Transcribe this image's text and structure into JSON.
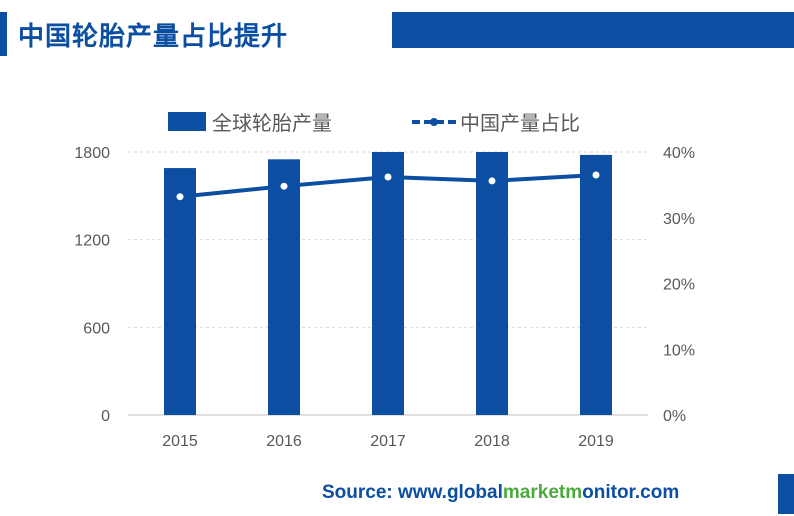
{
  "page": {
    "title": "中国轮胎产量占比提升",
    "source": {
      "prefix": "Source: www.",
      "parts": [
        "global",
        "market",
        "monitor",
        ".com"
      ]
    }
  },
  "colors": {
    "primary": "#0B4EA2",
    "accent_green": "#4BAA3C",
    "grid": "#D9D9D9",
    "axis_text": "#595959"
  },
  "chart_data": {
    "type": "bar",
    "categories": [
      "2015",
      "2016",
      "2017",
      "2018",
      "2019"
    ],
    "series": [
      {
        "name": "全球轮胎产量",
        "type": "bar",
        "axis": "left",
        "values": [
          1690,
          1750,
          1800,
          1800,
          1780
        ]
      },
      {
        "name": "中国产量占比",
        "type": "line",
        "axis": "right",
        "values": [
          33.2,
          34.8,
          36.2,
          35.6,
          36.5
        ],
        "unit": "%"
      }
    ],
    "y_left": {
      "ylim": [
        0,
        1800
      ],
      "ticks": [
        "0",
        "600",
        "1200",
        "1800"
      ],
      "tick_values": [
        0,
        600,
        1200,
        1800
      ]
    },
    "y_right": {
      "ylim": [
        0,
        40
      ],
      "ticks": [
        "0%",
        "10%",
        "20%",
        "30%",
        "40%"
      ],
      "tick_values": [
        0,
        10,
        20,
        30,
        40
      ]
    },
    "legend": {
      "placement": "top",
      "items": [
        "全球轮胎产量",
        "中国产量占比"
      ]
    },
    "grid": true
  }
}
